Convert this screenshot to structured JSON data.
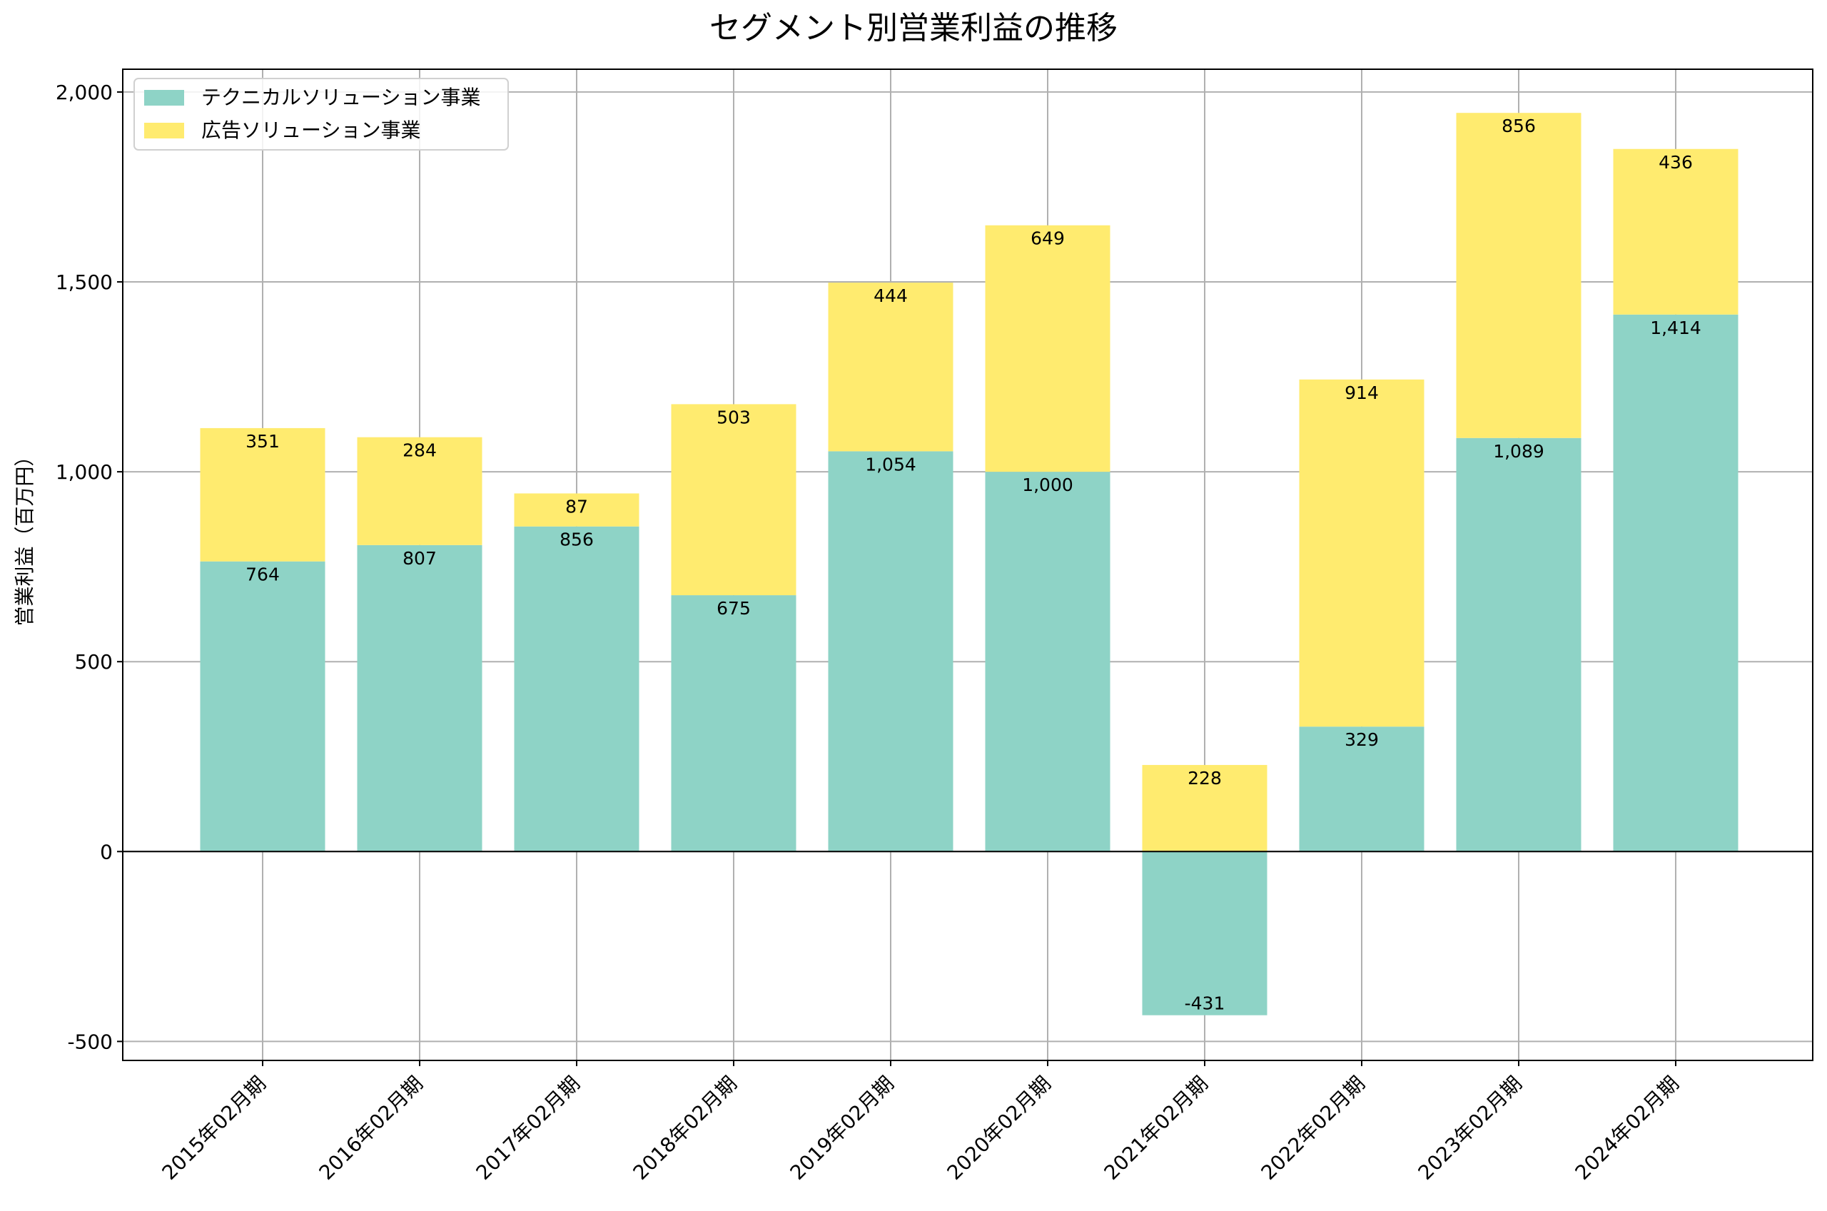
{
  "chart_data": {
    "type": "bar",
    "stacked": true,
    "title": "セグメント別営業利益の推移",
    "xlabel": "",
    "ylabel": "営業利益（百万円）",
    "ylim": [
      -550,
      2060
    ],
    "yticks": [
      -500,
      0,
      500,
      1000,
      1500,
      2000
    ],
    "ytick_labels": [
      "-500",
      "0",
      "500",
      "1,000",
      "1,500",
      "2,000"
    ],
    "grid": true,
    "legend_position": "top-left",
    "categories": [
      "2015年02月期",
      "2016年02月期",
      "2017年02月期",
      "2018年02月期",
      "2019年02月期",
      "2020年02月期",
      "2021年02月期",
      "2022年02月期",
      "2023年02月期",
      "2024年02月期"
    ],
    "series": [
      {
        "name": "テクニカルソリューション事業",
        "color": "#8ed3c6",
        "values": [
          764,
          807,
          856,
          675,
          1054,
          1000,
          -431,
          329,
          1089,
          1414
        ],
        "labels": [
          "764",
          "807",
          "856",
          "675",
          "1,054",
          "1,000",
          "-431",
          "329",
          "1,089",
          "1,414"
        ]
      },
      {
        "name": "広告ソリューション事業",
        "color": "#ffeb6f",
        "values": [
          351,
          284,
          87,
          503,
          444,
          649,
          228,
          914,
          856,
          436
        ],
        "labels": [
          "351",
          "284",
          "87",
          "503",
          "444",
          "649",
          "228",
          "914",
          "856",
          "436"
        ]
      }
    ]
  }
}
